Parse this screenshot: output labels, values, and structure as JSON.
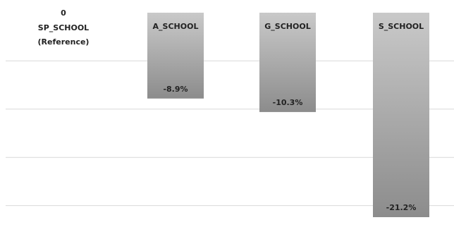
{
  "chart_data": {
    "type": "bar",
    "title": "",
    "xlabel": "",
    "ylabel": "",
    "ylim": [
      -24,
      0
    ],
    "grid": true,
    "categories": [
      "SP_SCHOOL",
      "A_SCHOOL",
      "G_SCHOOL",
      "S_SCHOOL"
    ],
    "values": [
      0,
      -8.9,
      -10.3,
      -21.2
    ],
    "data_labels": [
      "0",
      "-8.9%",
      "-10.3%",
      "-21.2%"
    ],
    "category_notes": [
      "(Reference)",
      "",
      "",
      ""
    ],
    "colors": {
      "bar_top": "#c9c9c9",
      "bar_bottom": "#8c8c8c",
      "grid": "#d9d9d9",
      "text": "#222222"
    }
  }
}
